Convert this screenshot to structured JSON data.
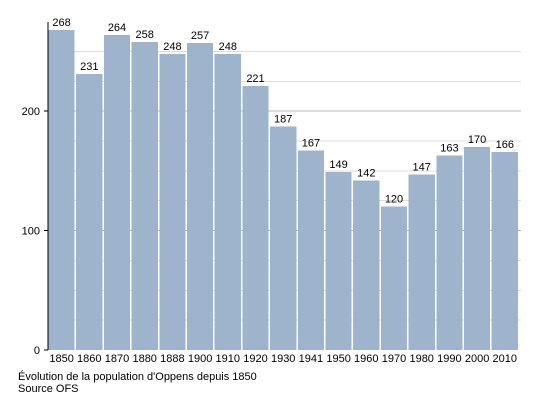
{
  "chart_data": {
    "type": "bar",
    "categories": [
      "1850",
      "1860",
      "1870",
      "1880",
      "1888",
      "1900",
      "1910",
      "1920",
      "1930",
      "1941",
      "1950",
      "1960",
      "1970",
      "1980",
      "1990",
      "2000",
      "2010"
    ],
    "values": [
      268,
      231,
      264,
      258,
      248,
      257,
      248,
      221,
      187,
      167,
      149,
      142,
      120,
      147,
      163,
      170,
      166
    ],
    "data_labels": [
      "268",
      "231",
      "264",
      "258",
      "248",
      "257",
      "248",
      "221",
      "187",
      "167",
      "149",
      "142",
      "120",
      "147",
      "163",
      "170",
      "166"
    ],
    "yticks": [
      0,
      100,
      200
    ],
    "ytick_labels": [
      "0",
      "100",
      "200"
    ],
    "ylim": [
      0,
      268
    ],
    "grid_values": [
      25,
      50,
      75,
      100,
      125,
      150,
      175,
      200,
      225,
      250
    ],
    "grid": true,
    "legend": "none",
    "title": "",
    "xlabel": "",
    "ylabel": "",
    "bar_color": "#9db4cc",
    "grid_color": "#dddddd",
    "grid_major_color": "#b8b8b8",
    "axis_color": "#000000"
  },
  "caption": {
    "title": "Évolution de la population d'Oppens depuis 1850",
    "source": "Source OFS"
  }
}
